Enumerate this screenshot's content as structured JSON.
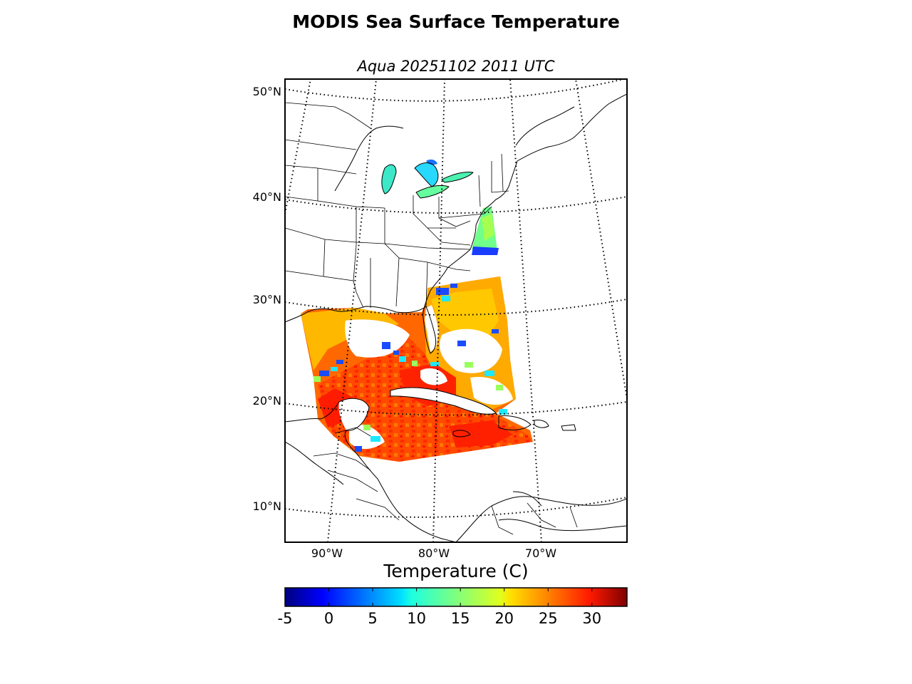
{
  "title": "MODIS Sea Surface Temperature",
  "subtitle": "Aqua 20251102 2011 UTC",
  "map": {
    "parallels": [
      50,
      40,
      30,
      20,
      10
    ],
    "meridians": [
      -90,
      -80,
      -70
    ],
    "lat_labels": [
      "50°N",
      "40°N",
      "30°N",
      "20°N",
      "10°N"
    ],
    "lon_labels": [
      "90°W",
      "80°W",
      "70°W"
    ],
    "grid": "dotted"
  },
  "colorbar": {
    "title": "Temperature (C)",
    "min": -5,
    "max": 34,
    "ticks": [
      -5,
      0,
      5,
      10,
      15,
      20,
      25,
      30
    ],
    "tick_labels": [
      "-5",
      "0",
      "5",
      "10",
      "15",
      "20",
      "25",
      "30"
    ],
    "colormap": "jet"
  },
  "colors": {
    "cold": "#00007f",
    "cool": "#0080ff",
    "mid": "#7fff7f",
    "warm": "#ffb000",
    "hot": "#7f0000"
  }
}
